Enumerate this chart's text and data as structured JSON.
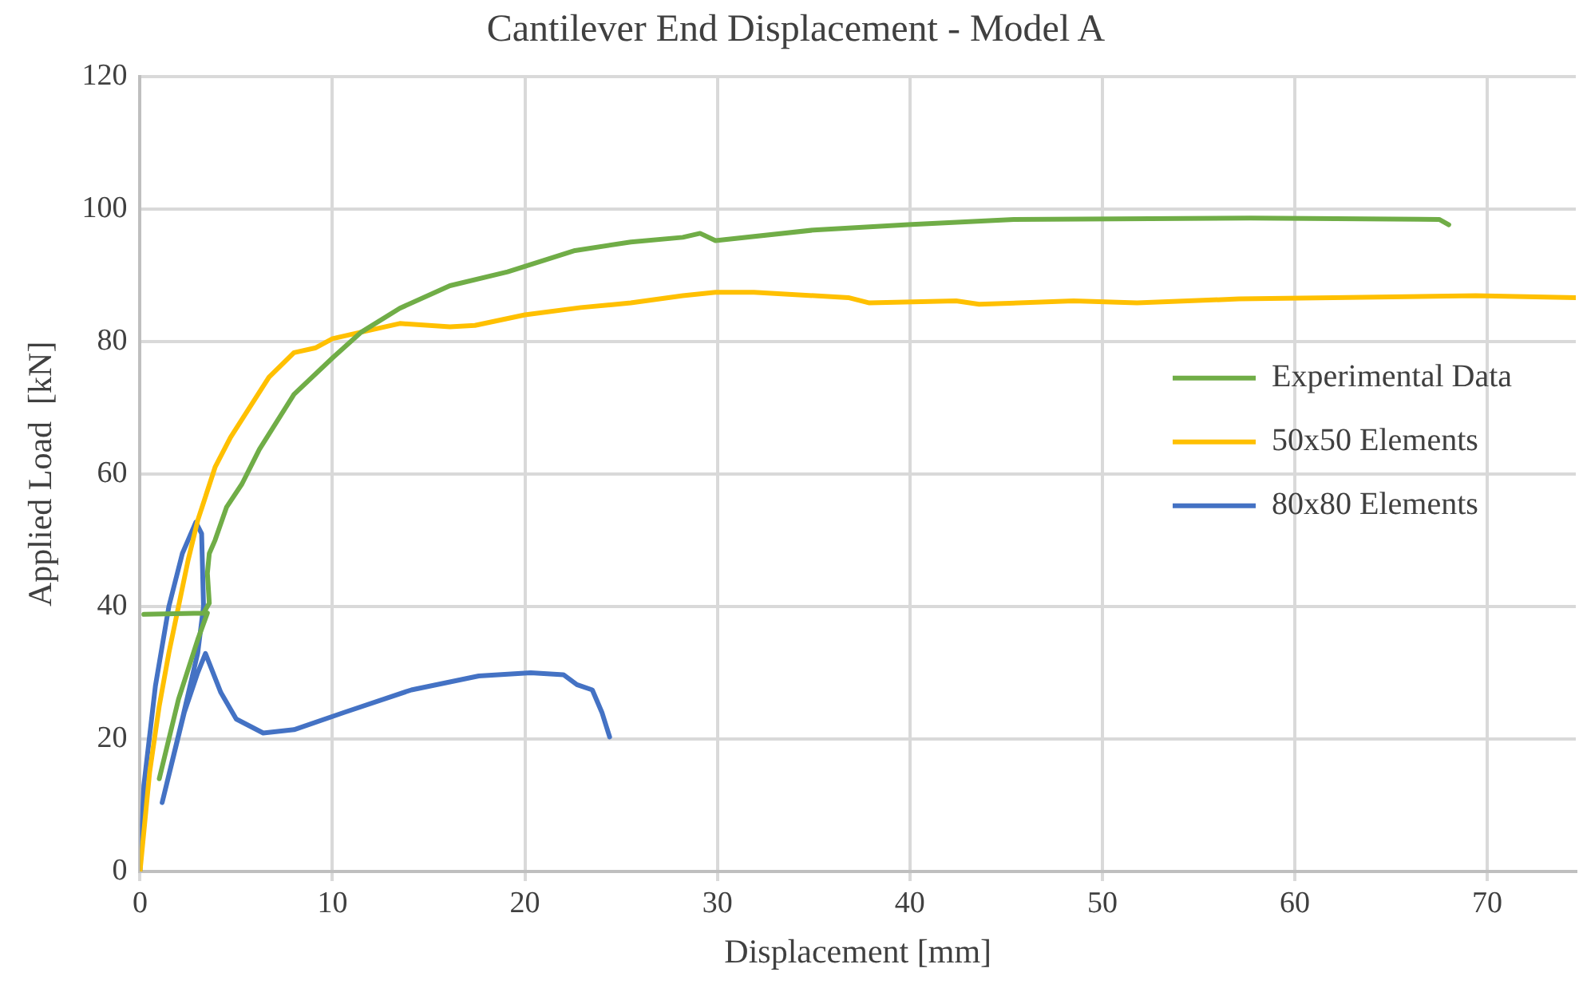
{
  "chart_data": {
    "type": "line",
    "title": "Cantilever End Displacement - Model A",
    "xlabel": "Displacement [mm]",
    "ylabel": "Applied Load  [kN]",
    "xlim": [
      0,
      74.6
    ],
    "xticks": [
      0,
      10,
      20,
      30,
      40,
      50,
      60,
      70
    ],
    "ylim": [
      0,
      120
    ],
    "yticks": [
      0,
      20,
      40,
      60,
      80,
      100,
      120
    ],
    "grid": true,
    "legend": "right",
    "marker": "none",
    "line_style": "solid",
    "series": [
      {
        "name": "Experimental Data",
        "color": "#70ad47",
        "x": [
          1,
          2,
          3,
          3.5,
          0.2,
          3.3,
          3.6,
          3.5,
          3.6,
          3.9,
          4.5,
          5.3,
          6.2,
          8,
          10,
          11.5,
          13.5,
          16.1,
          19.1,
          22.6,
          25.5,
          28.2,
          29.1,
          29.9,
          35,
          39.9,
          45.4,
          57.7,
          67.5,
          68
        ],
        "values": [
          14,
          26,
          35,
          39,
          38.8,
          39,
          40.5,
          45,
          48,
          50,
          55,
          58.5,
          63.7,
          72,
          77.5,
          81.4,
          85,
          88.4,
          90.5,
          93.7,
          95,
          95.7,
          96.3,
          95.2,
          96.8,
          97.6,
          98.4,
          98.6,
          98.4,
          97.6
        ]
      },
      {
        "name": "50x50 Elements",
        "color": "#ffc000",
        "x": [
          0,
          0.5,
          1,
          1.5,
          2,
          2.5,
          3,
          3.9,
          4.7,
          6.7,
          8,
          9.1,
          10,
          11.5,
          13.5,
          16.1,
          17.4,
          20,
          22.9,
          25.5,
          28.2,
          29.9,
          31.9,
          36.8,
          37.9,
          42.4,
          43.6,
          48.5,
          51.8,
          57.1,
          62,
          69.4,
          74.6
        ],
        "values": [
          0,
          15,
          25,
          33,
          40,
          47,
          53,
          61,
          65.5,
          74.6,
          78.3,
          79,
          80.4,
          81.4,
          82.7,
          82.2,
          82.4,
          84,
          85.1,
          85.8,
          86.9,
          87.4,
          87.4,
          86.6,
          85.8,
          86.1,
          85.6,
          86.1,
          85.8,
          86.4,
          86.6,
          86.9,
          86.6
        ]
      },
      {
        "name": "80x80 Elements",
        "color": "#4472c4",
        "x": [
          0,
          0.2,
          0.8,
          1.5,
          2.2,
          2.9,
          3.2,
          3.3,
          3,
          2.2,
          1.15,
          2.3,
          3,
          3.4,
          4.2,
          5,
          6.4,
          8,
          10.6,
          14.1,
          17.6,
          20.3,
          22,
          22.7,
          23.5,
          24,
          24.4
        ],
        "values": [
          0,
          13,
          28,
          40,
          48,
          52.7,
          51,
          40,
          33,
          23,
          10.4,
          24,
          30,
          32.9,
          27,
          23,
          20.9,
          21.4,
          24,
          27.4,
          29.5,
          30,
          29.7,
          28.2,
          27.4,
          24,
          20.3
        ]
      }
    ]
  }
}
